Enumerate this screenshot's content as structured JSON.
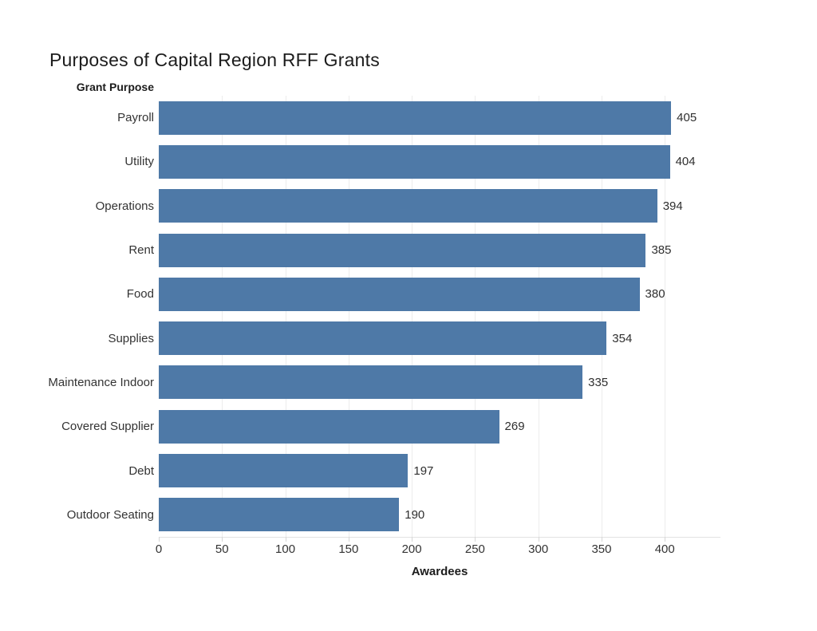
{
  "window": {
    "background": "#ffffff"
  },
  "chart": {
    "title": "Purposes of Capital Region RFF Grants",
    "row_axis_header": "Grant Purpose",
    "x_axis_title": "Awardees",
    "bar_color": "#4e79a7",
    "grid_color": "#ececec",
    "axis_line_color": "#e2e2e2",
    "tick_mark_color": "#d6d6d6",
    "text_color": "#333333",
    "title_color": "#1c1c1c"
  },
  "chart_data": {
    "type": "bar",
    "orientation": "horizontal",
    "title": "Purposes of Capital Region RFF Grants",
    "categories": [
      "Payroll",
      "Utility",
      "Operations",
      "Rent",
      "Food",
      "Supplies",
      "Maintenance Indoor",
      "Covered Supplier",
      "Debt",
      "Outdoor Seating"
    ],
    "values": [
      405,
      404,
      394,
      385,
      380,
      354,
      335,
      269,
      197,
      190
    ],
    "xlabel": "Awardees",
    "ylabel": "Grant Purpose",
    "x_ticks": [
      0,
      50,
      100,
      150,
      200,
      250,
      300,
      350,
      400
    ],
    "xlim": [
      0,
      444
    ],
    "grid": true,
    "legend": false,
    "data_labels": true
  }
}
